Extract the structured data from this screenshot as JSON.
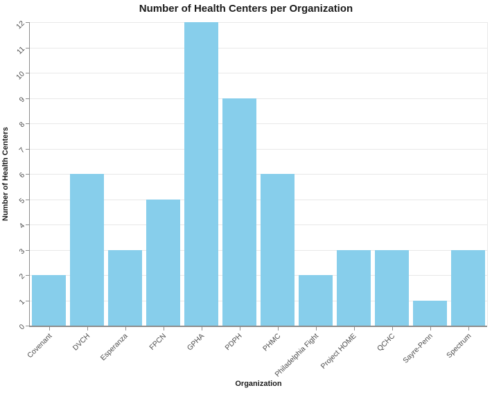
{
  "chart_data": {
    "type": "bar",
    "title": "Number of Health Centers per Organization",
    "xlabel": "Organization",
    "ylabel": "Number of Health Centers",
    "categories": [
      "Covenant",
      "DVCH",
      "Esperanza",
      "FPCN",
      "GPHA",
      "PDPH",
      "PHMC",
      "Philadelphia Fight",
      "Project HOME",
      "QCHC",
      "Sayre-Penn",
      "Spectrum"
    ],
    "values": [
      2,
      6,
      3,
      5,
      12,
      9,
      6,
      2,
      3,
      3,
      1,
      3
    ],
    "yticks": [
      0,
      1,
      2,
      3,
      4,
      5,
      6,
      7,
      8,
      9,
      10,
      11,
      12
    ],
    "ylim": [
      0,
      12
    ],
    "grid": true,
    "legend": "none",
    "tick_label_rotation_deg": -45,
    "colors": {
      "bar": "#87CEEB",
      "axis": "#8c8c8c",
      "grid": "#e8e8e8",
      "tick_label": "#4d4d4d",
      "title": "#1a1a1a"
    }
  }
}
